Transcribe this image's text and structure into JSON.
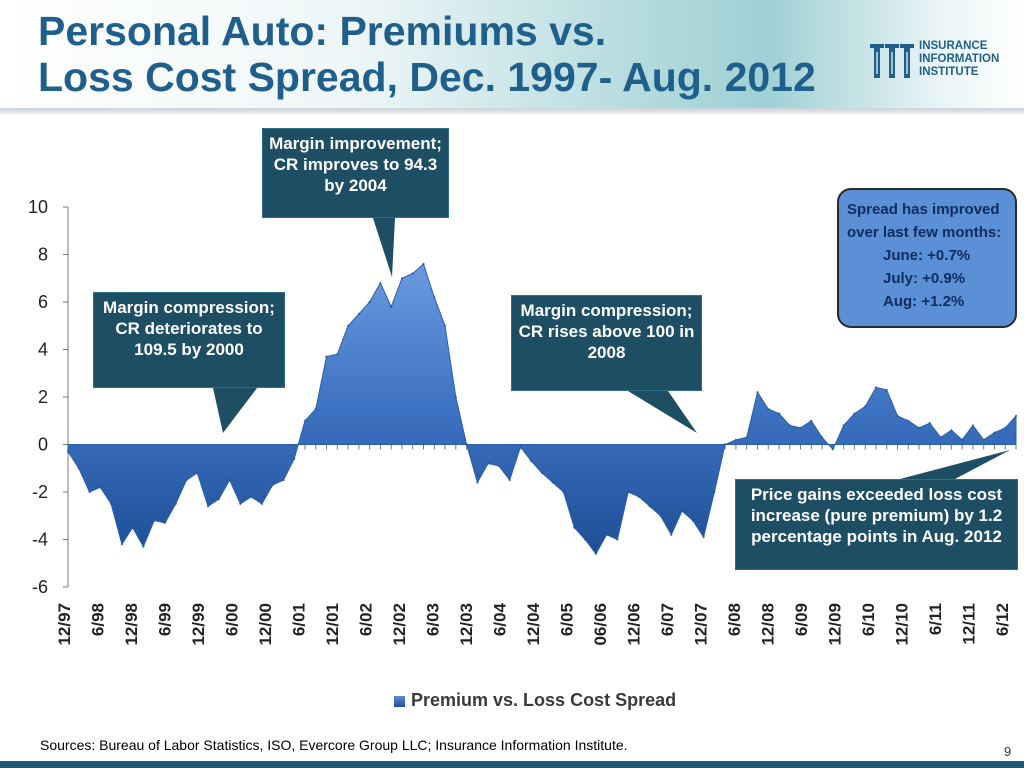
{
  "header": {
    "title_line1": "Personal Auto: Premiums vs.",
    "title_line2": "Loss Cost Spread, Dec. 1997- Aug. 2012",
    "logo": {
      "line1": "INSURANCE",
      "line2": "INFORMATION",
      "line3": "INSTITUTE"
    }
  },
  "callouts": {
    "improvement": "Margin improvement; CR improves to 94.3 by 2004",
    "compression_2000": "Margin compression; CR deteriorates to 109.5 by 2000",
    "compression_2008": "Margin compression; CR rises above 100 in 2008",
    "price_gains": "Price gains exceeded loss cost increase (pure premium) by 1.2 percentage points in Aug. 2012"
  },
  "spread_box": {
    "heading_line1": "Spread has improved",
    "heading_line2": "over last few months:",
    "june": "June: +0.7%",
    "july": "July: +0.9%",
    "aug": "Aug: +1.2%"
  },
  "footer": {
    "sources": "Sources: Bureau of Labor Statistics, ISO, Evercore Group LLC; Insurance Information Institute.",
    "page_number": "9"
  },
  "colors": {
    "title": "#1f5f8b",
    "area_top": "#5d8fd8",
    "area_bottom": "#1e4f96",
    "callout": "#1e4e63"
  },
  "chart_data": {
    "type": "area",
    "ylim": [
      -6,
      10
    ],
    "yticks": [
      "10",
      "8",
      "6",
      "4",
      "2",
      "0",
      "-2",
      "-4",
      "-6"
    ],
    "xticks": [
      "12/97",
      "6/98",
      "12/98",
      "6/99",
      "12/99",
      "6/00",
      "12/00",
      "6/01",
      "12/01",
      "6/02",
      "12/02",
      "6/03",
      "12/03",
      "6/04",
      "12/04",
      "6/05",
      "06/06",
      "12/06",
      "6/07",
      "12/07",
      "6/08",
      "12/08",
      "6/09",
      "12/09",
      "6/10",
      "12/10",
      "6/11",
      "12/11",
      "6/12"
    ],
    "grid": false,
    "legend_position": "bottom",
    "series": [
      {
        "name": "Premium vs. Loss Cost Spread",
        "x": [
          "12/97",
          "2/98",
          "4/98",
          "6/98",
          "8/98",
          "10/98",
          "12/98",
          "2/99",
          "4/99",
          "6/99",
          "8/99",
          "10/99",
          "12/99",
          "2/00",
          "4/00",
          "6/00",
          "8/00",
          "10/00",
          "12/00",
          "2/01",
          "4/01",
          "6/01",
          "8/01",
          "10/01",
          "12/01",
          "2/02",
          "4/02",
          "6/02",
          "8/02",
          "10/02",
          "12/02",
          "2/03",
          "4/03",
          "6/03",
          "8/03",
          "10/03",
          "12/03",
          "2/04",
          "4/04",
          "6/04",
          "8/04",
          "10/04",
          "12/04",
          "2/05",
          "4/05",
          "6/05",
          "8/05",
          "10/05",
          "12/05",
          "2/06",
          "4/06",
          "6/06",
          "8/06",
          "10/06",
          "12/06",
          "2/07",
          "4/07",
          "6/07",
          "8/07",
          "10/07",
          "12/07",
          "2/08",
          "4/08",
          "6/08",
          "8/08",
          "10/08",
          "12/08",
          "2/09",
          "4/09",
          "6/09",
          "8/09",
          "10/09",
          "12/09",
          "2/10",
          "4/10",
          "6/10",
          "8/10",
          "10/10",
          "12/10",
          "2/11",
          "4/11",
          "6/11",
          "8/11",
          "10/11",
          "12/11",
          "2/12",
          "4/12",
          "6/12",
          "8/12"
        ],
        "values": [
          -0.3,
          -1.0,
          -2.0,
          -1.8,
          -2.5,
          -4.2,
          -3.5,
          -4.3,
          -3.2,
          -3.3,
          -2.5,
          -1.5,
          -1.2,
          -2.6,
          -2.3,
          -1.5,
          -2.5,
          -2.2,
          -2.5,
          -1.7,
          -1.5,
          -0.6,
          1.0,
          1.5,
          3.7,
          3.8,
          5.0,
          5.5,
          6.0,
          6.8,
          5.8,
          7.0,
          7.2,
          7.6,
          6.2,
          5.0,
          2.0,
          0.0,
          -1.6,
          -0.8,
          -0.9,
          -1.5,
          -0.1,
          -0.7,
          -1.2,
          -1.6,
          -2.0,
          -3.5,
          -4.0,
          -4.6,
          -3.8,
          -4.0,
          -2.0,
          -2.2,
          -2.6,
          -3.0,
          -3.8,
          -2.8,
          -3.2,
          -3.9,
          -2.0,
          0.0,
          0.2,
          0.3,
          2.2,
          1.5,
          1.3,
          0.8,
          0.7,
          1.0,
          0.3,
          -0.2,
          0.8,
          1.3,
          1.6,
          2.4,
          2.3,
          1.2,
          1.0,
          0.7,
          0.9,
          0.3,
          0.6,
          0.2,
          0.8,
          0.2,
          0.5,
          0.7,
          1.2
        ]
      }
    ]
  }
}
